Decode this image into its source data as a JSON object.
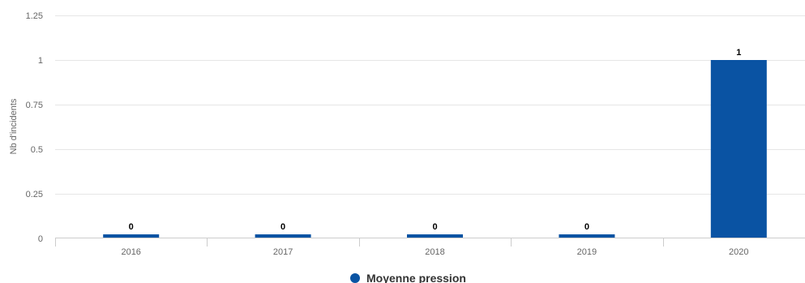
{
  "chart_data": {
    "type": "bar",
    "categories": [
      "2016",
      "2017",
      "2018",
      "2019",
      "2020"
    ],
    "series": [
      {
        "name": "Moyenne pression",
        "values": [
          0,
          0,
          0,
          0,
          1
        ],
        "color": "#0a53a3"
      }
    ],
    "data_labels": [
      "0",
      "0",
      "0",
      "0",
      "1"
    ],
    "ylabel": "Nb d'incidents",
    "xlabel": "",
    "ylim": [
      0,
      1.25
    ],
    "yticks": [
      0,
      0.25,
      0.5,
      0.75,
      1,
      1.25
    ],
    "ytick_labels": [
      "0",
      "0.25",
      "0.5",
      "0.75",
      "1",
      "1.25"
    ],
    "grid": true,
    "legend_position": "bottom-center"
  }
}
